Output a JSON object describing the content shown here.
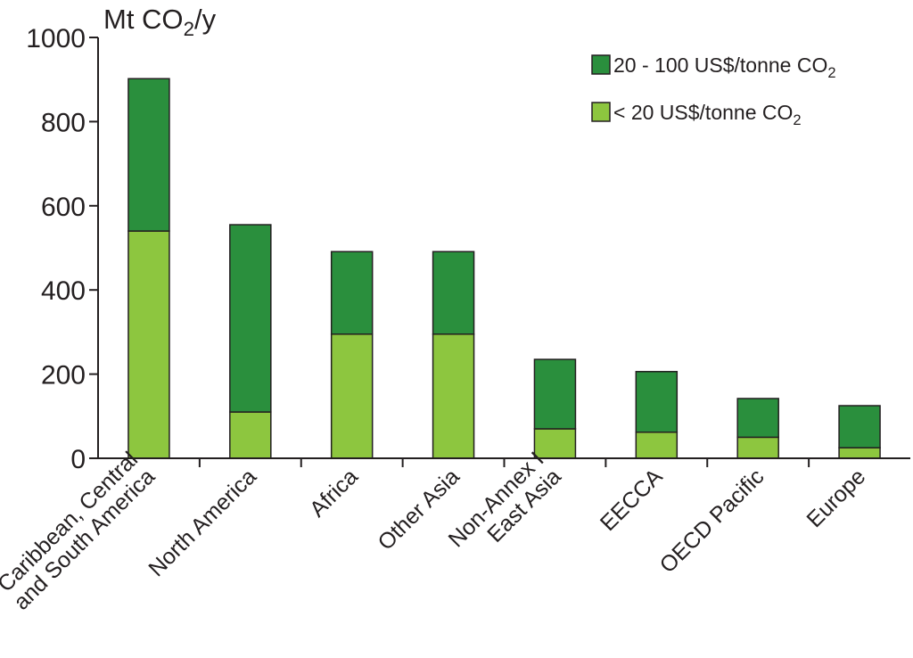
{
  "chart_data": {
    "type": "bar",
    "stacked": true,
    "unit_label": {
      "main": "Mt CO",
      "sub": "2",
      "suffix": "/y"
    },
    "categories": [
      [
        "Caribbean, Central",
        "and South America"
      ],
      [
        "North America"
      ],
      [
        "Africa"
      ],
      [
        "Other Asia"
      ],
      [
        "Non-Annex I",
        "East Asia"
      ],
      [
        "EECCA"
      ],
      [
        "OECD Pacific"
      ],
      [
        "Europe"
      ]
    ],
    "series": [
      {
        "name": "< 20 US$/tonne CO2",
        "label_main": "< 20 US$/tonne CO",
        "label_sub": "2",
        "color": "#8dc63f",
        "values": [
          540,
          110,
          295,
          295,
          70,
          62,
          50,
          25
        ]
      },
      {
        "name": "20 - 100 US$/tonne CO2",
        "label_main": "20 - 100 US$/tonne CO",
        "label_sub": "2",
        "color": "#2a8f3d",
        "values": [
          362,
          445,
          196,
          196,
          165,
          144,
          92,
          100
        ]
      }
    ],
    "ylim": [
      0,
      1000
    ],
    "yticks": [
      0,
      200,
      400,
      600,
      800,
      1000
    ],
    "grid": false,
    "legend_position": "top-right"
  }
}
